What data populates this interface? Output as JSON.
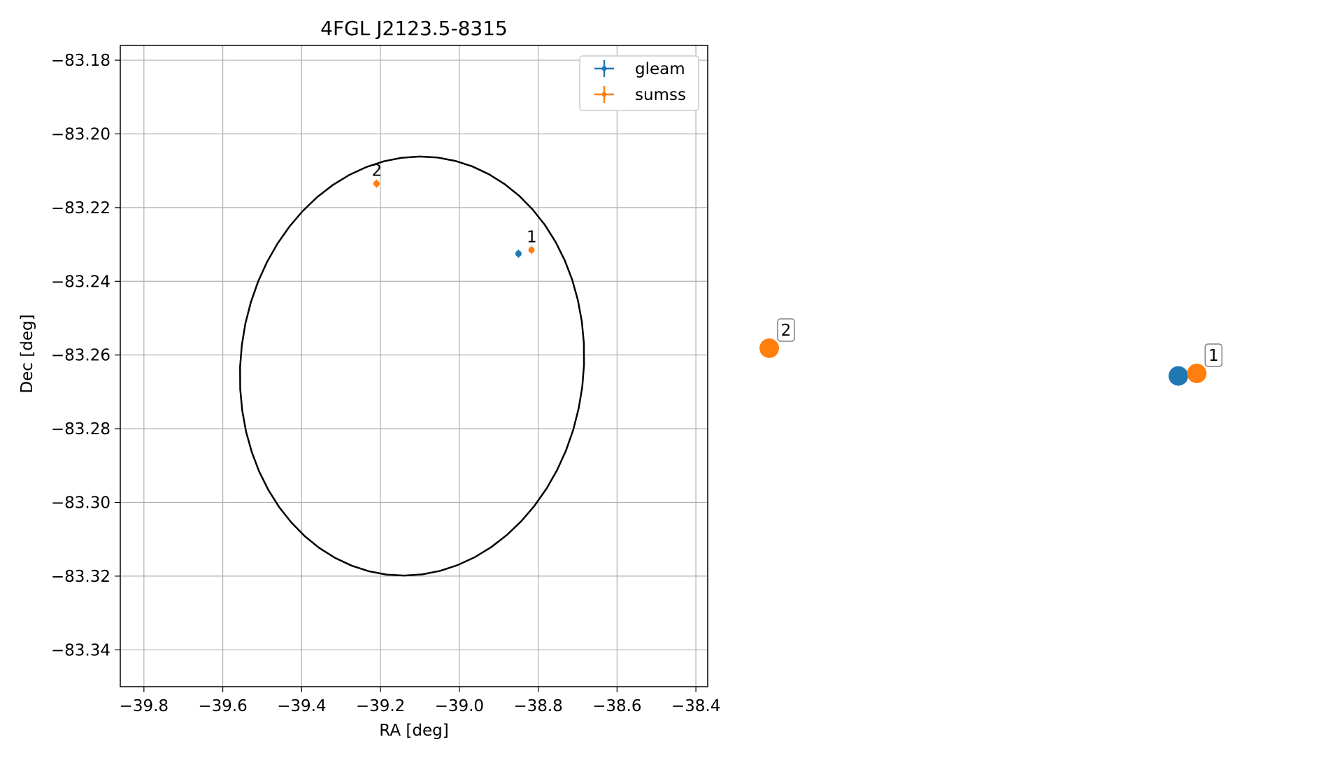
{
  "chart_data": [
    {
      "type": "scatter",
      "title": "4FGL J2123.5-8315",
      "xlabel": "RA [deg]",
      "ylabel": "Dec [deg]",
      "xlim": [
        -39.86,
        -38.37
      ],
      "ylim": [
        -83.35,
        -83.176
      ],
      "xticks": [
        -39.8,
        -39.6,
        -39.4,
        -39.2,
        -39.0,
        -38.8,
        -38.6,
        -38.4
      ],
      "xtick_labels": [
        "−39.8",
        "−39.6",
        "−39.4",
        "−39.2",
        "−39.0",
        "−38.8",
        "−38.6",
        "−38.4"
      ],
      "yticks": [
        -83.18,
        -83.2,
        -83.22,
        -83.24,
        -83.26,
        -83.28,
        -83.3,
        -83.32,
        -83.34
      ],
      "ytick_labels": [
        "−83.18",
        "−83.20",
        "−83.22",
        "−83.24",
        "−83.26",
        "−83.28",
        "−83.30",
        "−83.32",
        "−83.34"
      ],
      "grid": true,
      "legend_position": "top-right",
      "series": [
        {
          "name": "gleam",
          "color": "#1f77b4",
          "points": [
            {
              "x": -38.85,
              "y": -83.2325
            }
          ]
        },
        {
          "name": "sumss",
          "color": "#ff7f0e",
          "points": [
            {
              "x": -38.817,
              "y": -83.2315,
              "label": "1"
            },
            {
              "x": -39.21,
              "y": -83.2135,
              "label": "2"
            }
          ]
        }
      ],
      "ellipse": {
        "center_x": -39.12,
        "center_y": -83.263,
        "semi_axis_x": 0.435,
        "semi_axis_y": 0.057,
        "rotation_deg": 7,
        "color": "#000000"
      }
    },
    {
      "type": "scatter",
      "title": "",
      "axes_visible": false,
      "points": [
        {
          "x": 0.0,
          "y": 0.0,
          "color": "#ff7f0e",
          "label": "2"
        },
        {
          "x": 1.0,
          "y": -0.22,
          "color": "#1f77b4",
          "label": ""
        },
        {
          "x": 1.045,
          "y": -0.2,
          "color": "#ff7f0e",
          "label": "1"
        }
      ]
    }
  ]
}
